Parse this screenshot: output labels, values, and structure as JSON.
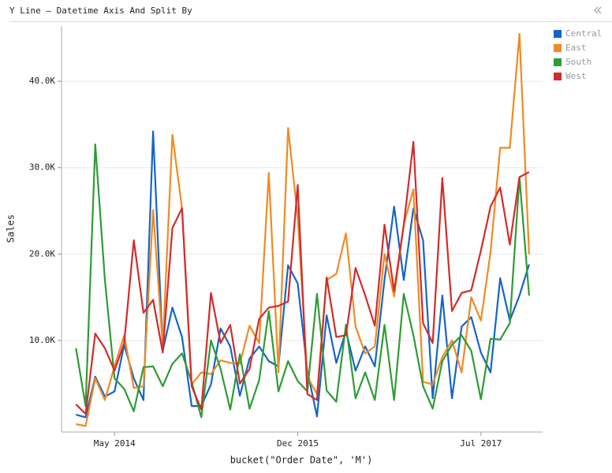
{
  "chart_data": {
    "type": "line",
    "title": "Y Line – Datetime Axis And Split By",
    "x_label": "bucket(\"Order Date\", 'M')",
    "y_label": "Sales",
    "x": [
      "2014-01",
      "2014-02",
      "2014-03",
      "2014-04",
      "2014-05",
      "2014-06",
      "2014-07",
      "2014-08",
      "2014-09",
      "2014-10",
      "2014-11",
      "2014-12",
      "2015-01",
      "2015-02",
      "2015-03",
      "2015-04",
      "2015-05",
      "2015-06",
      "2015-07",
      "2015-08",
      "2015-09",
      "2015-10",
      "2015-11",
      "2015-12",
      "2016-01",
      "2016-02",
      "2016-03",
      "2016-04",
      "2016-05",
      "2016-06",
      "2016-07",
      "2016-08",
      "2016-09",
      "2016-10",
      "2016-11",
      "2016-12",
      "2017-01",
      "2017-02",
      "2017-03",
      "2017-04",
      "2017-05",
      "2017-06",
      "2017-07",
      "2017-08",
      "2017-09",
      "2017-10",
      "2017-11",
      "2017-12"
    ],
    "series": [
      {
        "name": "Central",
        "color": "#1565c8",
        "values": [
          1400,
          1100,
          5800,
          3500,
          4100,
          9500,
          5600,
          3100,
          34200,
          8800,
          13800,
          10400,
          2400,
          2400,
          4900,
          11400,
          9300,
          3600,
          7900,
          9300,
          7600,
          7000,
          18700,
          16600,
          6500,
          1200,
          12900,
          7400,
          11100,
          6500,
          9300,
          7000,
          17000,
          25500,
          17000,
          25300,
          21600,
          3300,
          15200,
          3300,
          11600,
          12700,
          8600,
          6300,
          17200,
          12300,
          15200,
          18800
        ]
      },
      {
        "name": "East",
        "color": "#f08a24",
        "values": [
          300,
          100,
          5600,
          3100,
          7000,
          10600,
          4500,
          4700,
          25100,
          9300,
          33800,
          25300,
          4900,
          6300,
          6100,
          7700,
          7400,
          7300,
          11700,
          9700,
          29400,
          6300,
          34600,
          24300,
          5800,
          3800,
          17000,
          17700,
          22400,
          11600,
          8500,
          9300,
          20000,
          15100,
          23400,
          27500,
          5200,
          4900,
          8100,
          10000,
          6300,
          15000,
          12300,
          20200,
          32300,
          32300,
          45500,
          20000
        ]
      },
      {
        "name": "South",
        "color": "#2e9c34",
        "values": [
          9100,
          2400,
          32700,
          17000,
          5600,
          4400,
          1800,
          6900,
          7000,
          4700,
          7300,
          8500,
          5200,
          1100,
          10000,
          6700,
          2000,
          8400,
          2100,
          5400,
          13400,
          4100,
          7600,
          5300,
          4100,
          15400,
          4200,
          2900,
          11800,
          3300,
          6300,
          3100,
          11800,
          3100,
          15400,
          10600,
          4700,
          2100,
          7600,
          9500,
          10600,
          8800,
          3200,
          10200,
          10100,
          12000,
          28900,
          15200
        ]
      },
      {
        "name": "West",
        "color": "#d22b2b",
        "values": [
          2600,
          1500,
          10800,
          9100,
          6500,
          9700,
          21600,
          13200,
          14700,
          8600,
          23000,
          25300,
          4700,
          2000,
          15500,
          9700,
          11800,
          5000,
          6700,
          12500,
          13800,
          14000,
          14500,
          28000,
          3800,
          3100,
          17300,
          10400,
          10600,
          18400,
          15200,
          11700,
          23400,
          15700,
          23400,
          33000,
          12000,
          9700,
          28800,
          13400,
          15500,
          15800,
          20400,
          25500,
          27700,
          21100,
          28900,
          29500
        ]
      }
    ],
    "xlim": [
      "2013-11-16",
      "2018-01-13"
    ],
    "xticks": [
      {
        "value": "2014-05",
        "label": "May 2014"
      },
      {
        "value": "2015-12",
        "label": "Dec 2015"
      },
      {
        "value": "2017-07",
        "label": "Jul 2017"
      }
    ],
    "ylim": [
      -600,
      46400
    ],
    "yticks": [
      {
        "value": 10000,
        "label": "10.0K"
      },
      {
        "value": 20000,
        "label": "20.0K"
      },
      {
        "value": 30000,
        "label": "30.0K"
      },
      {
        "value": 40000,
        "label": "40.0K"
      }
    ],
    "grid": true,
    "legend": "top-right"
  }
}
